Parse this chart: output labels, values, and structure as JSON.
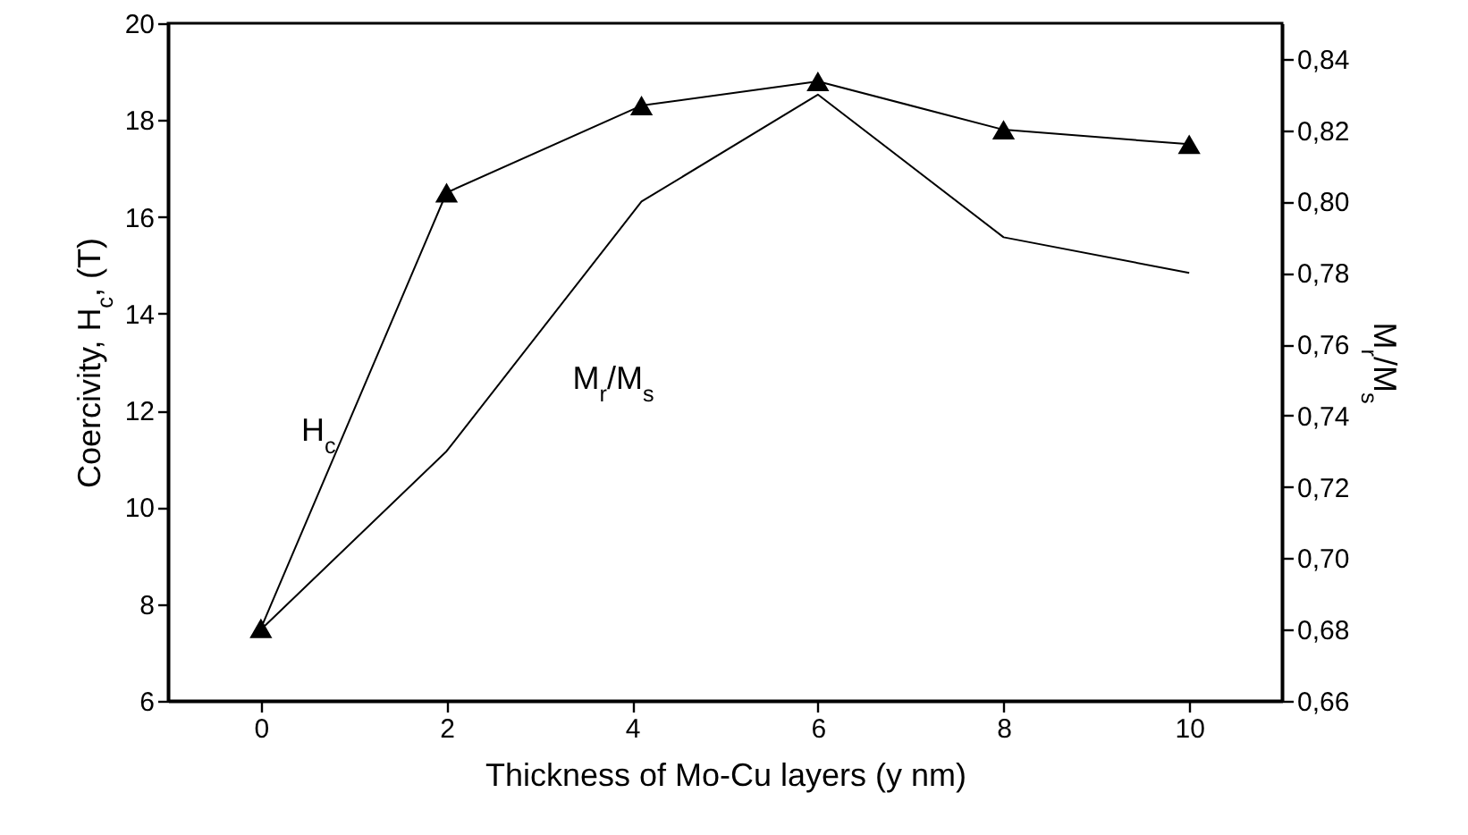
{
  "chart_data": {
    "type": "line",
    "xlabel": "Thickness of Mo-Cu layers (y nm)",
    "ylabel": "Coercivity, H$_{c}$, (T)",
    "y2label": "M$_{r}$/M$_{s}$",
    "x": [
      0,
      2,
      4.1,
      6,
      8,
      10
    ],
    "xlim": [
      -1,
      11
    ],
    "xticks": [
      0,
      2,
      4,
      6,
      8,
      10
    ],
    "ylim": [
      6,
      20
    ],
    "yticks": [
      6,
      8,
      10,
      12,
      14,
      16,
      18,
      20
    ],
    "y2lim": [
      0.66,
      0.85
    ],
    "y2ticks": [
      {
        "value": 0.66,
        "label": "0,66"
      },
      {
        "value": 0.68,
        "label": "0,68"
      },
      {
        "value": 0.7,
        "label": "0,70"
      },
      {
        "value": 0.72,
        "label": "0,72"
      },
      {
        "value": 0.74,
        "label": "0,74"
      },
      {
        "value": 0.76,
        "label": "0,76"
      },
      {
        "value": 0.78,
        "label": "0,78"
      },
      {
        "value": 0.8,
        "label": "0,80"
      },
      {
        "value": 0.82,
        "label": "0,82"
      },
      {
        "value": 0.84,
        "label": "0,84"
      }
    ],
    "series": [
      {
        "name": "H$_{c}$",
        "color": "#000000",
        "marker": "triangle",
        "values": [
          7.5,
          16.5,
          18.3,
          18.8,
          17.8,
          17.5
        ]
      },
      {
        "name": "M$_{r}$/M$_{s}$",
        "color": "#000000",
        "marker": "none",
        "axis": "y2",
        "values": [
          0.68,
          0.73,
          0.8,
          0.83,
          0.79,
          0.78
        ]
      }
    ]
  }
}
